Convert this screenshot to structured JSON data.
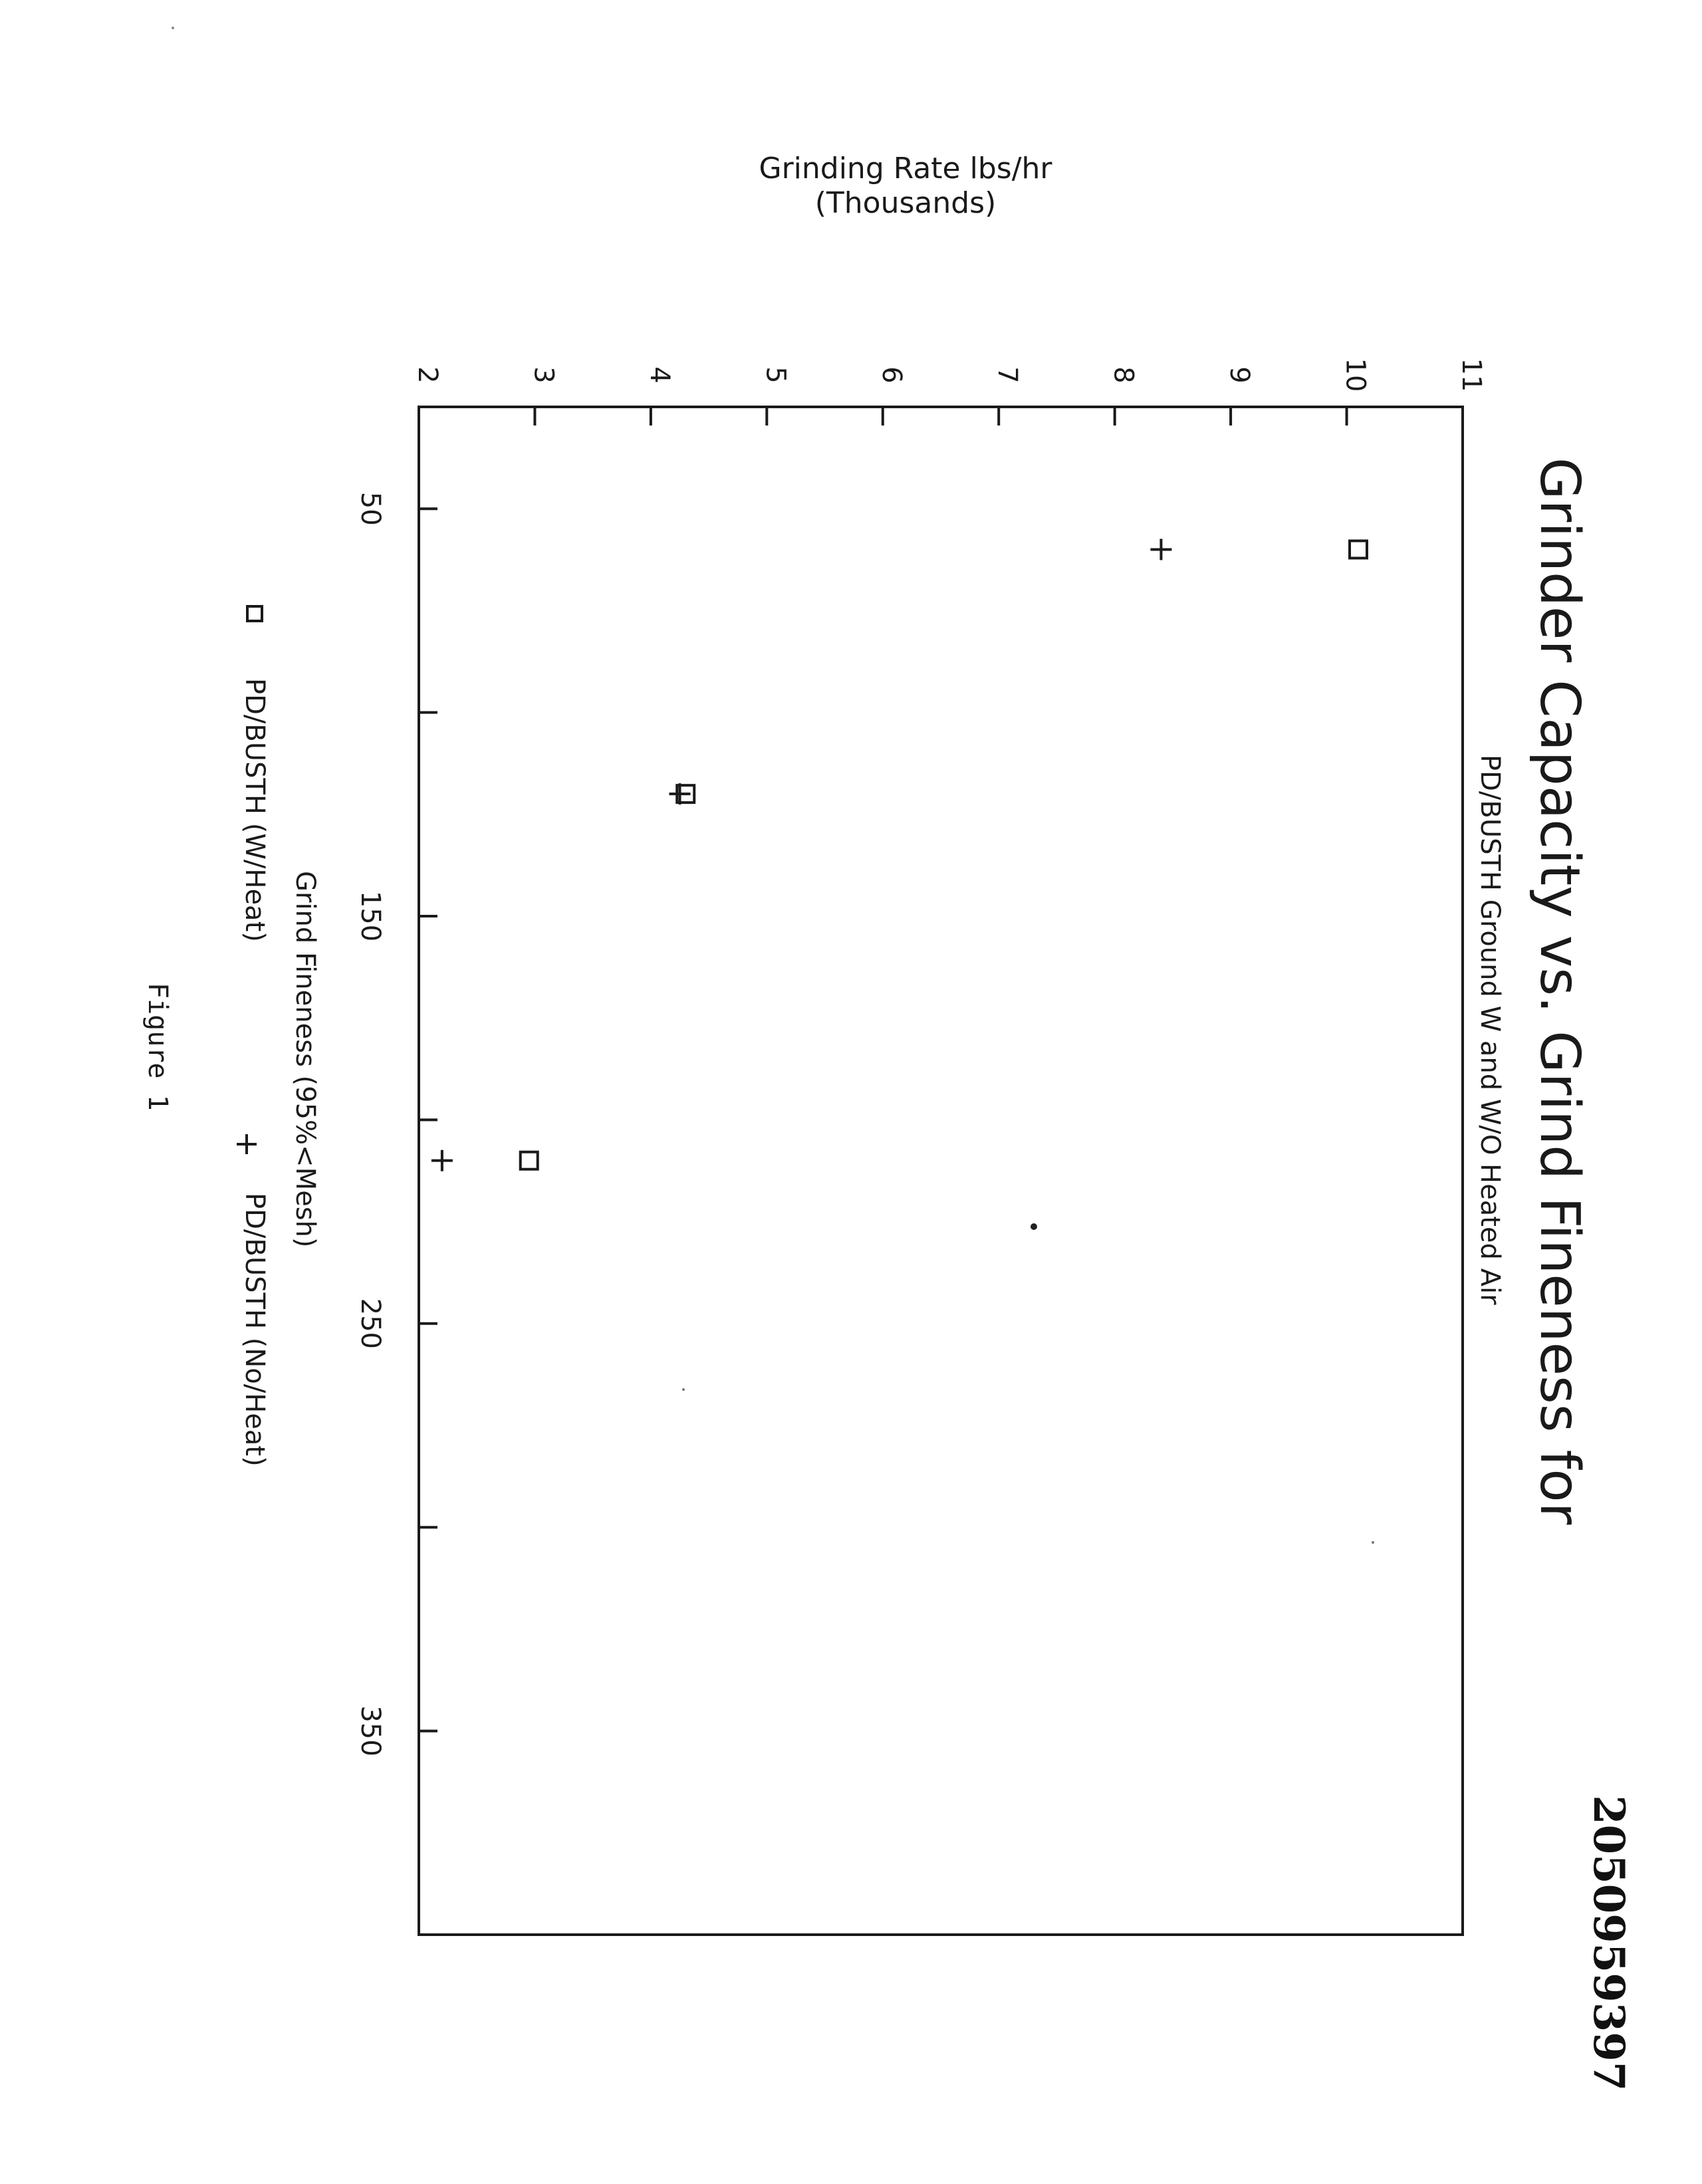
{
  "document_number": "2050959397",
  "figure_caption": "Figure 1",
  "chart_data": {
    "type": "scatter",
    "orientation": "rotated 90° clockwise on page",
    "title": "Grinder Capacity vs. Grind Fineness for",
    "subtitle": "PD/BUSTH Ground W and W/O Heated Air",
    "xlabel": "Grind Fineness (95%<Mesh)",
    "ylabel": "Grinding Rate lbs/hr",
    "ylabel_sub": "(Thousands)",
    "xlim": [
      25,
      400
    ],
    "ylim": [
      2,
      11
    ],
    "x_ticks": [
      50,
      100,
      150,
      200,
      250,
      300,
      350,
      400
    ],
    "x_tick_labels": [
      "50",
      "",
      "150",
      "",
      "250",
      "",
      "350",
      ""
    ],
    "y_ticks": [
      2,
      3,
      4,
      5,
      6,
      7,
      8,
      9,
      10,
      11
    ],
    "y_tick_labels": [
      "2",
      "3",
      "4",
      "5",
      "6",
      "7",
      "8",
      "9",
      "10",
      "11"
    ],
    "grid": false,
    "legend_position": "bottom",
    "series": [
      {
        "name": "PD/BUSTH (W/Heat)",
        "marker": "square",
        "color": "#1a1a1a",
        "x": [
          60,
          120,
          210
        ],
        "y": [
          10.1,
          4.3,
          2.95
        ]
      },
      {
        "name": "PD/BUSTH (No/Heat)",
        "marker": "plus",
        "color": "#1a1a1a",
        "x": [
          60,
          120,
          210
        ],
        "y": [
          8.4,
          4.25,
          2.2
        ]
      }
    ]
  }
}
